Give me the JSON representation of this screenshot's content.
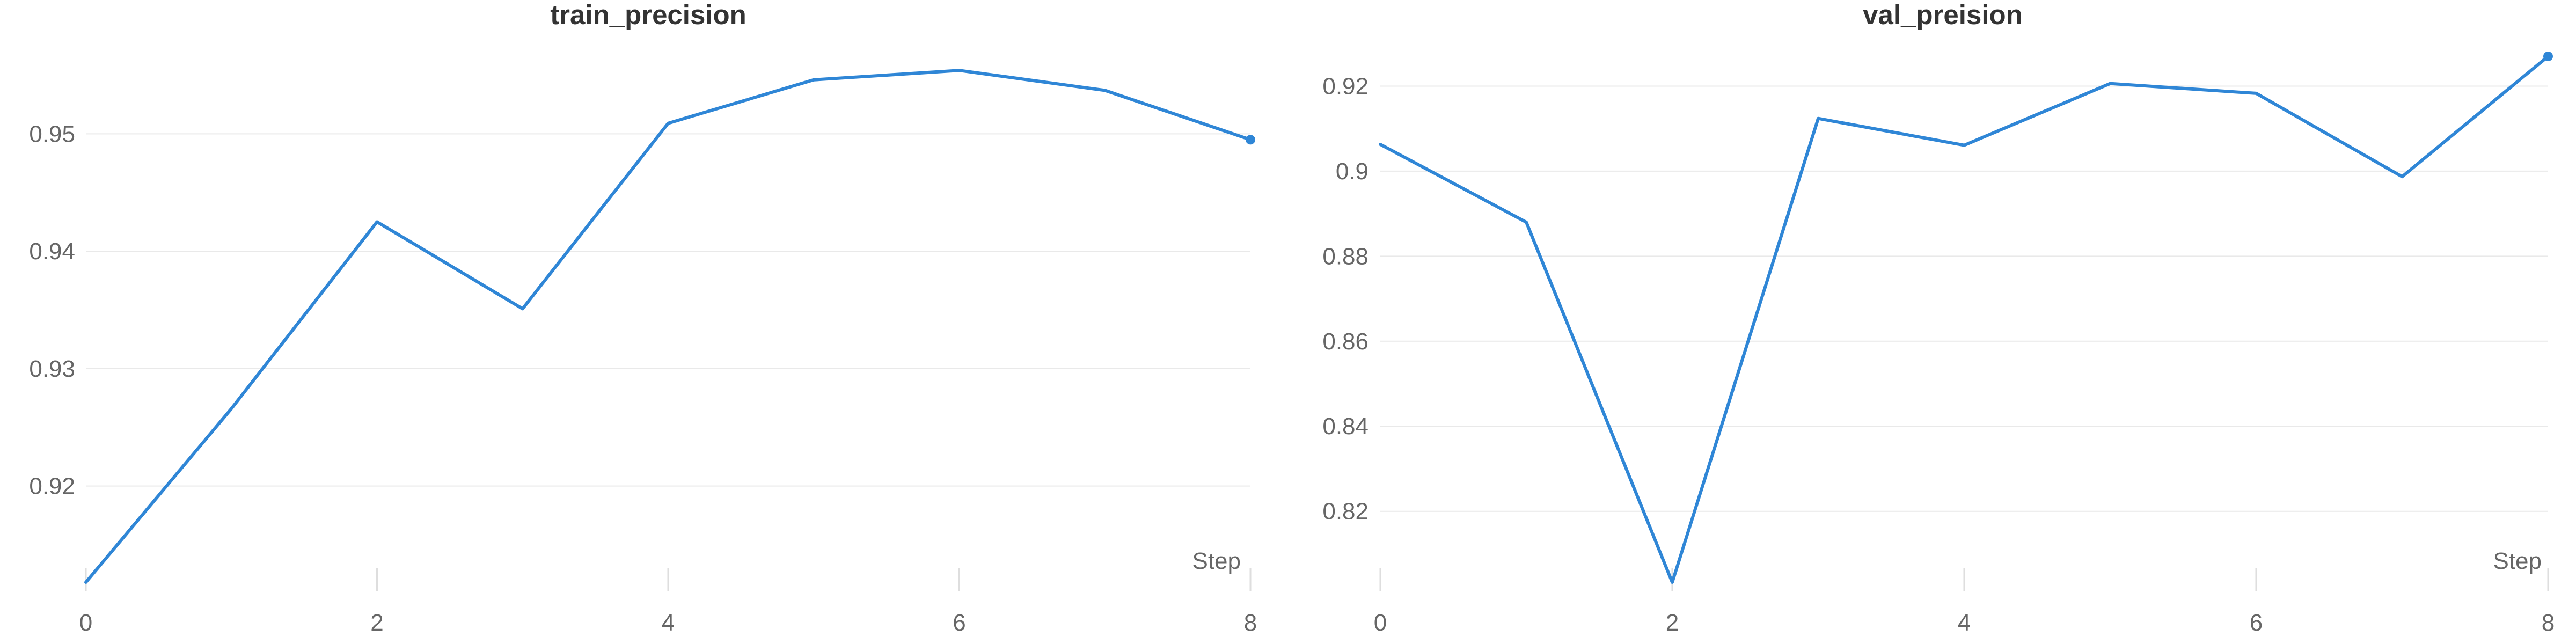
{
  "colors": {
    "series": "#2f86d6"
  },
  "chart_data": [
    {
      "type": "line",
      "title": "train_precision",
      "xlabel": "Step",
      "ylabel": "",
      "xlim": [
        0,
        8
      ],
      "ylim": [
        0.9118,
        0.9566
      ],
      "x_ticks": [
        0,
        2,
        4,
        6,
        8
      ],
      "y_ticks": [
        0.92,
        0.93,
        0.94,
        0.95
      ],
      "y_tick_labels": [
        "0.92",
        "0.93",
        "0.94",
        "0.95"
      ],
      "grid": true,
      "end_marker": true,
      "series": [
        {
          "x": [
            0,
            1,
            2,
            3,
            4,
            5,
            6,
            7,
            8
          ],
          "values": [
            0.9118,
            0.9266,
            0.9425,
            0.9351,
            0.9509,
            0.9546,
            0.9554,
            0.9537,
            0.9495
          ]
        }
      ]
    },
    {
      "type": "line",
      "title": "val_preision",
      "xlabel": "Step",
      "ylabel": "",
      "xlim": [
        0,
        8
      ],
      "ylim": [
        0.8033,
        0.927
      ],
      "x_ticks": [
        0,
        2,
        4,
        6,
        8
      ],
      "y_ticks": [
        0.82,
        0.84,
        0.86,
        0.88,
        0.9,
        0.92
      ],
      "y_tick_labels": [
        "0.82",
        "0.84",
        "0.86",
        "0.88",
        "0.9",
        "0.92"
      ],
      "grid": true,
      "end_marker": true,
      "series": [
        {
          "x": [
            0,
            1,
            2,
            3,
            4,
            5,
            6,
            7,
            8
          ],
          "values": [
            0.9063,
            0.888,
            0.8033,
            0.9124,
            0.9061,
            0.9206,
            0.9183,
            0.8987,
            0.927
          ]
        }
      ]
    }
  ]
}
